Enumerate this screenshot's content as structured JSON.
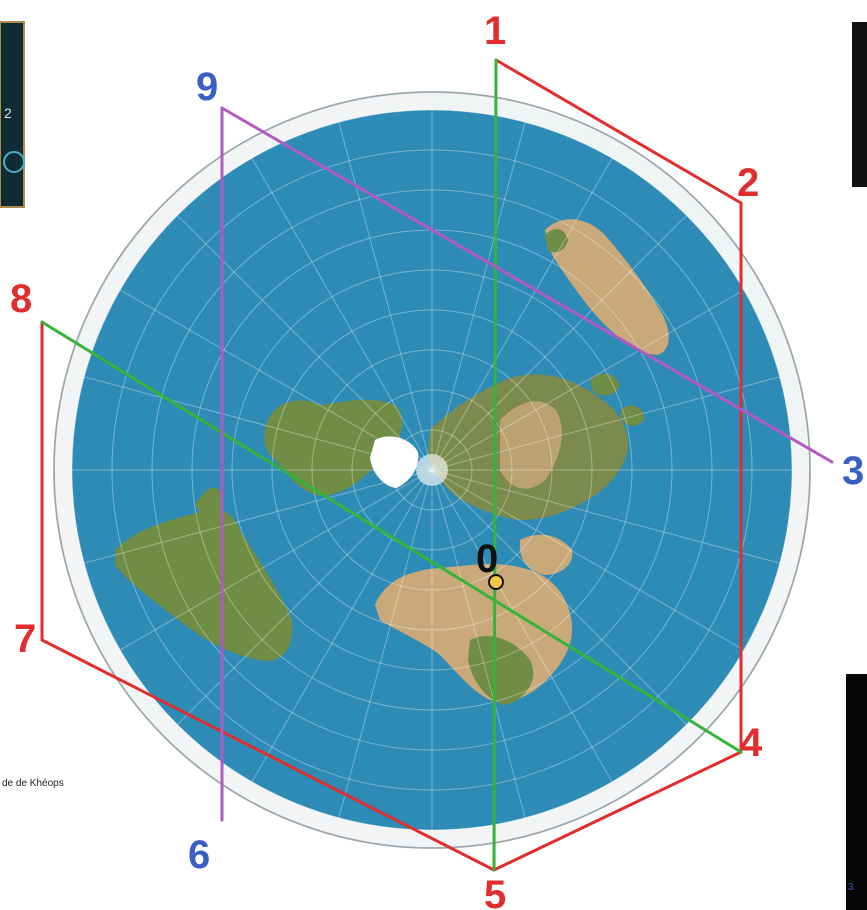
{
  "colors": {
    "ocean": "#2e8bb5",
    "rim": "#f2f4f5",
    "land_green": "#6f8d45",
    "land_desert": "#c9a97a",
    "ice": "#ffffff",
    "red_line": "#e02d2d",
    "green_line": "#35b33a",
    "purple_line": "#b05ac4",
    "red_label": "#e02d2d",
    "blue_label": "#3a5fc4",
    "center_label": "#111111",
    "center_marker": "#f4c542"
  },
  "map": {
    "projection": "azimuthal-equidistant",
    "center_label": "0",
    "reference_caption": "de de Khéops"
  },
  "points": [
    {
      "id": "1",
      "label": "1",
      "color": "red"
    },
    {
      "id": "2",
      "label": "2",
      "color": "red"
    },
    {
      "id": "3",
      "label": "3",
      "color": "blue"
    },
    {
      "id": "4",
      "label": "4",
      "color": "red"
    },
    {
      "id": "5",
      "label": "5",
      "color": "red"
    },
    {
      "id": "6",
      "label": "6",
      "color": "blue"
    },
    {
      "id": "7",
      "label": "7",
      "color": "red"
    },
    {
      "id": "8",
      "label": "8",
      "color": "red"
    },
    {
      "id": "9",
      "label": "9",
      "color": "blue"
    }
  ],
  "lines": {
    "red_path": [
      "1",
      "2",
      "4",
      "5",
      "7",
      "8"
    ],
    "green_lines": [
      [
        "1",
        "5"
      ],
      [
        "8",
        "4"
      ]
    ],
    "purple_lines": [
      [
        "9",
        "3"
      ],
      [
        "9",
        "6"
      ]
    ]
  },
  "side_thumbnails": {
    "top_left": {
      "visible_text": "2"
    },
    "bottom_right": {
      "visible_text": "3"
    }
  }
}
